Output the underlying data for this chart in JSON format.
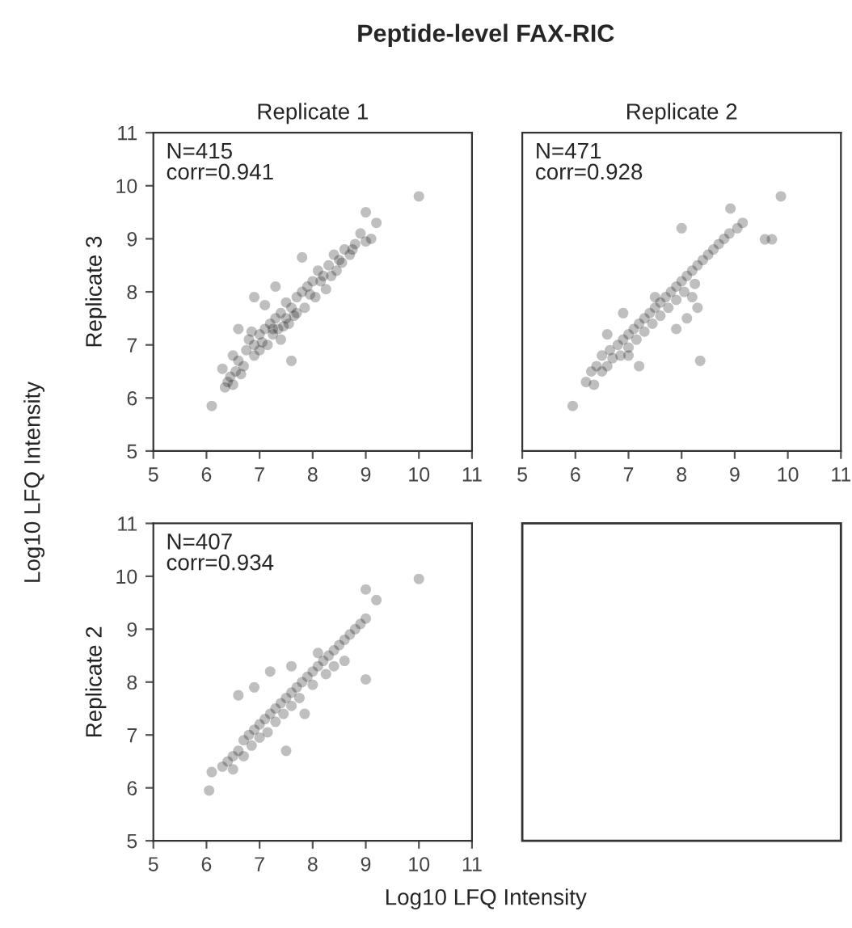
{
  "chart_data": [
    {
      "type": "scatter",
      "title": "Peptide-level FAX-RIC",
      "subtitle": "Replicate 1",
      "ylabel": "Replicate 3",
      "annotations": [
        "N=415\ncorr=0.941"
      ],
      "xlim": [
        5,
        11
      ],
      "ylim": [
        5,
        11
      ],
      "xticks": [
        5,
        6,
        7,
        8,
        9,
        10,
        11
      ],
      "yticks": [
        5,
        6,
        7,
        8,
        9,
        10,
        11
      ],
      "grid": false,
      "marker": "circle",
      "series": [
        {
          "color": "#000000",
          "x": [
            6.1,
            6.35,
            6.4,
            6.5,
            6.3,
            6.55,
            6.6,
            6.5,
            6.7,
            6.75,
            6.8,
            6.9,
            6.9,
            7.0,
            7.0,
            7.1,
            7.15,
            7.2,
            7.25,
            7.3,
            7.35,
            7.4,
            7.4,
            7.5,
            7.5,
            7.55,
            7.6,
            7.6,
            7.7,
            7.7,
            7.8,
            7.8,
            7.85,
            7.9,
            8.0,
            8.05,
            8.1,
            8.2,
            8.25,
            8.3,
            8.4,
            8.45,
            8.5,
            8.6,
            8.7,
            8.8,
            8.9,
            9.0,
            9.2,
            9.0,
            10.0,
            6.9,
            6.6,
            7.1,
            7.3,
            6.45,
            6.65,
            6.85,
            7.05,
            7.25,
            7.45,
            7.65,
            7.95,
            8.15,
            8.35,
            8.55,
            8.75,
            9.1
          ],
          "values": [
            5.85,
            6.2,
            6.3,
            6.25,
            6.55,
            6.5,
            6.7,
            6.8,
            6.6,
            6.9,
            7.1,
            6.8,
            7.0,
            7.2,
            6.9,
            7.3,
            7.0,
            7.4,
            7.2,
            7.5,
            7.3,
            7.6,
            7.1,
            7.5,
            7.8,
            7.4,
            7.7,
            6.7,
            7.6,
            7.9,
            8.0,
            8.65,
            7.7,
            8.1,
            8.2,
            7.9,
            8.4,
            8.3,
            8.05,
            8.5,
            8.7,
            8.4,
            8.6,
            8.8,
            8.7,
            8.9,
            9.1,
            9.5,
            9.3,
            8.95,
            9.8,
            7.9,
            7.3,
            7.75,
            8.1,
            6.4,
            6.45,
            7.25,
            7.05,
            7.3,
            7.35,
            7.55,
            7.95,
            8.2,
            8.3,
            8.55,
            8.8,
            9.0
          ]
        }
      ]
    },
    {
      "type": "scatter",
      "subtitle": "Replicate 2",
      "annotations": [
        "N=471\ncorr=0.928"
      ],
      "xlim": [
        5,
        11
      ],
      "ylim": [
        5,
        11
      ],
      "xticks": [
        5,
        6,
        7,
        8,
        9,
        10,
        11
      ],
      "yticks": [
        5,
        6,
        7,
        8,
        9,
        10,
        11
      ],
      "tick_labels": "x",
      "grid": false,
      "marker": "circle",
      "series": [
        {
          "color": "#000000",
          "x": [
            5.95,
            6.2,
            6.3,
            6.35,
            6.4,
            6.5,
            6.5,
            6.6,
            6.65,
            6.7,
            6.8,
            6.85,
            6.9,
            7.0,
            7.0,
            7.1,
            7.15,
            7.2,
            7.3,
            7.3,
            7.4,
            7.45,
            7.5,
            7.6,
            7.6,
            7.7,
            7.75,
            7.8,
            7.9,
            7.9,
            8.0,
            8.05,
            8.1,
            8.2,
            8.25,
            8.3,
            8.4,
            8.5,
            8.6,
            8.7,
            8.8,
            8.9,
            9.05,
            9.15,
            8.0,
            8.92,
            9.87,
            9.57,
            9.7,
            8.35,
            8.1,
            8.3,
            7.9,
            8.2,
            7.2,
            6.9,
            7.5,
            7.0,
            6.6
          ],
          "values": [
            5.85,
            6.3,
            6.5,
            6.25,
            6.6,
            6.5,
            6.8,
            6.6,
            6.9,
            6.75,
            7.0,
            6.8,
            7.1,
            7.2,
            6.95,
            7.3,
            7.1,
            7.4,
            7.5,
            7.25,
            7.6,
            7.4,
            7.7,
            7.8,
            7.55,
            7.9,
            7.7,
            8.0,
            8.1,
            7.85,
            8.2,
            8.0,
            8.3,
            8.4,
            8.15,
            8.5,
            8.6,
            8.7,
            8.8,
            8.9,
            9.0,
            9.1,
            9.2,
            9.3,
            9.2,
            9.57,
            9.8,
            8.99,
            8.99,
            6.7,
            7.5,
            7.7,
            7.3,
            7.9,
            6.6,
            7.6,
            7.9,
            6.8,
            7.2
          ]
        }
      ]
    },
    {
      "type": "scatter",
      "xlabel": "Log10 LFQ Intensity",
      "ylabel": "Replicate 2",
      "annotations": [
        "N=407\ncorr=0.934",
        "Log10 LFQ Intensity"
      ],
      "xlim": [
        5,
        11
      ],
      "ylim": [
        5,
        11
      ],
      "xticks": [
        5,
        6,
        7,
        8,
        9,
        10,
        11
      ],
      "yticks": [
        5,
        6,
        7,
        8,
        9,
        10,
        11
      ],
      "grid": false,
      "marker": "circle",
      "series": [
        {
          "color": "#000000",
          "x": [
            6.05,
            6.1,
            6.3,
            6.4,
            6.5,
            6.5,
            6.6,
            6.7,
            6.7,
            6.8,
            6.85,
            6.9,
            7.0,
            7.0,
            7.1,
            7.15,
            7.2,
            7.3,
            7.3,
            7.4,
            7.45,
            7.5,
            7.6,
            7.6,
            7.7,
            7.75,
            7.8,
            7.9,
            8.0,
            8.0,
            8.1,
            8.2,
            8.25,
            8.3,
            8.4,
            8.5,
            8.6,
            8.7,
            8.8,
            8.9,
            9.0,
            9.2,
            9.0,
            9.0,
            10.0,
            7.5,
            6.6,
            6.9,
            7.2,
            7.6,
            8.1,
            8.4,
            8.6,
            7.85
          ],
          "values": [
            5.95,
            6.3,
            6.4,
            6.5,
            6.35,
            6.6,
            6.7,
            6.6,
            6.9,
            7.0,
            6.8,
            7.1,
            7.2,
            6.95,
            7.3,
            7.05,
            7.4,
            7.5,
            7.25,
            7.6,
            7.4,
            7.7,
            7.8,
            7.55,
            7.9,
            7.7,
            8.0,
            8.1,
            8.2,
            7.95,
            8.3,
            8.4,
            8.15,
            8.5,
            8.6,
            8.7,
            8.8,
            8.9,
            9.0,
            9.1,
            9.75,
            9.55,
            8.05,
            9.2,
            9.95,
            6.7,
            7.75,
            7.9,
            8.2,
            8.3,
            8.55,
            8.3,
            8.4,
            7.4
          ]
        }
      ]
    }
  ]
}
